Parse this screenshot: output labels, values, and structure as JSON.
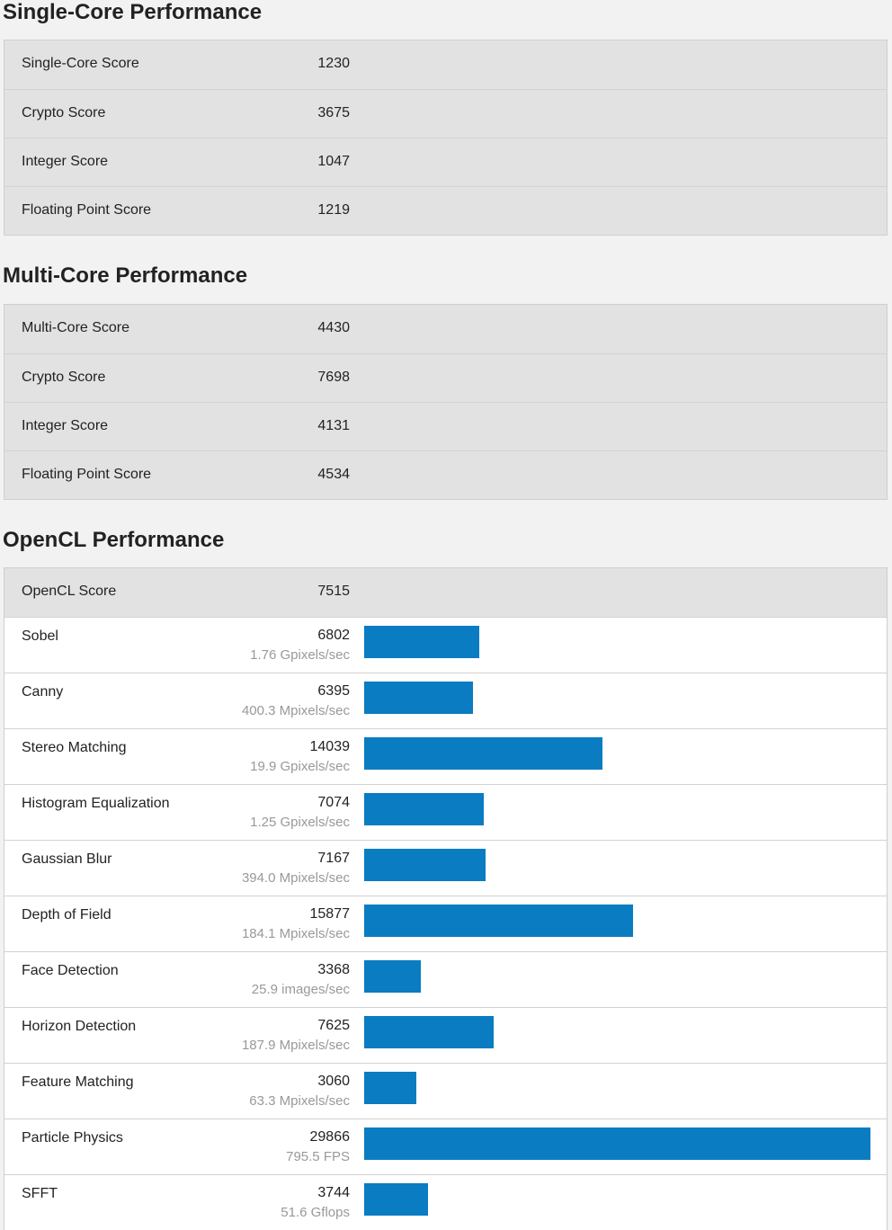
{
  "sections": [
    {
      "title": "Single-Core Performance",
      "rows": [
        {
          "name": "Single-Core Score",
          "score": "1230"
        },
        {
          "name": "Crypto Score",
          "score": "3675"
        },
        {
          "name": "Integer Score",
          "score": "1047"
        },
        {
          "name": "Floating Point Score",
          "score": "1219"
        }
      ]
    },
    {
      "title": "Multi-Core Performance",
      "rows": [
        {
          "name": "Multi-Core Score",
          "score": "4430"
        },
        {
          "name": "Crypto Score",
          "score": "7698"
        },
        {
          "name": "Integer Score",
          "score": "4131"
        },
        {
          "name": "Floating Point Score",
          "score": "4534"
        }
      ]
    },
    {
      "title": "OpenCL Performance",
      "summary": {
        "name": "OpenCL Score",
        "score": "7515"
      }
    }
  ],
  "colors": {
    "bar": "#0a7cc1"
  },
  "chart_data": {
    "type": "bar",
    "orientation": "horizontal",
    "categories": [
      "Sobel",
      "Canny",
      "Stereo Matching",
      "Histogram Equalization",
      "Gaussian Blur",
      "Depth of Field",
      "Face Detection",
      "Horizon Detection",
      "Feature Matching",
      "Particle Physics",
      "SFFT"
    ],
    "values": [
      6802,
      6395,
      14039,
      7074,
      7167,
      15877,
      3368,
      7625,
      3060,
      29866,
      3744
    ],
    "rates": [
      "1.76 Gpixels/sec",
      "400.3 Mpixels/sec",
      "19.9 Gpixels/sec",
      "1.25 Gpixels/sec",
      "394.0 Mpixels/sec",
      "184.1 Mpixels/sec",
      "25.9 images/sec",
      "187.9 Mpixels/sec",
      "63.3 Mpixels/sec",
      "795.5 FPS",
      "51.6 Gflops"
    ],
    "xlim": [
      0,
      29866
    ]
  }
}
